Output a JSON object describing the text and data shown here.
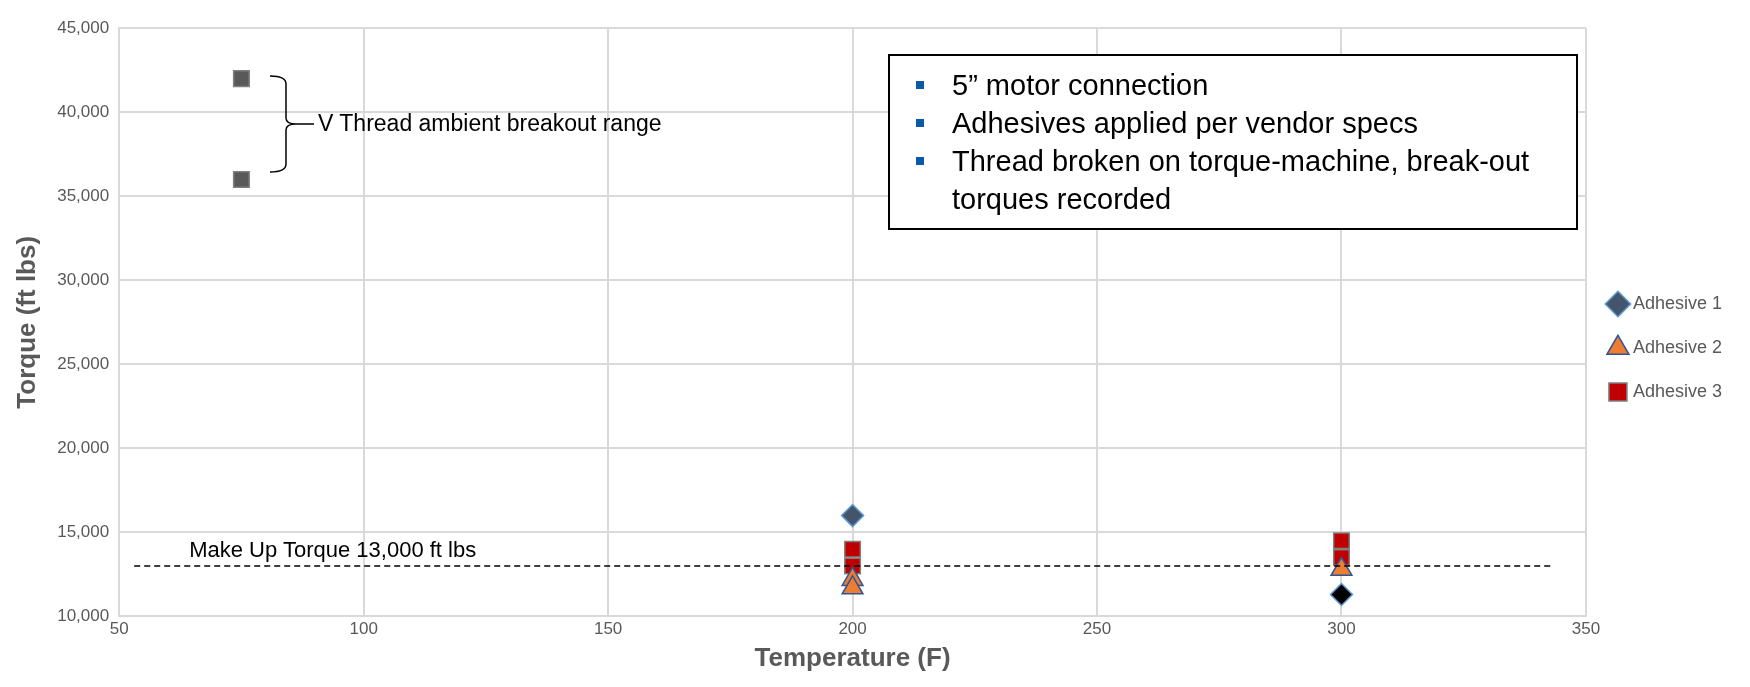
{
  "chart_data": {
    "type": "scatter",
    "xlabel": "Temperature (F)",
    "ylabel": "Torque (ft lbs)",
    "xlim": [
      50,
      350
    ],
    "xticks": [
      50,
      100,
      150,
      200,
      250,
      300,
      350
    ],
    "ylim": [
      10000,
      45000
    ],
    "yticks": [
      {
        "value": 10000,
        "label": "10,000"
      },
      {
        "value": 15000,
        "label": "15,000"
      },
      {
        "value": 20000,
        "label": "20,000"
      },
      {
        "value": 25000,
        "label": "25,000"
      },
      {
        "value": 30000,
        "label": "30,000"
      },
      {
        "value": 35000,
        "label": "35,000"
      },
      {
        "value": 40000,
        "label": "40,000"
      },
      {
        "value": 45000,
        "label": "45,000"
      }
    ],
    "grid": true,
    "legend": "right",
    "series": [
      {
        "color": "#595959",
        "marker": "square",
        "x": [
          75,
          75
        ],
        "values": [
          42000,
          36000
        ]
      },
      {
        "name": "Adhesive 1",
        "color": "#000000",
        "colors": [
          "#44546a",
          "#000000"
        ],
        "marker": "diamond",
        "x": [
          200,
          300
        ],
        "values": [
          16000,
          11300
        ]
      },
      {
        "name": "Adhesive 2",
        "color": "#ed7d31",
        "marker": "triangle",
        "x": [
          200,
          200,
          300
        ],
        "values": [
          12200,
          11700,
          12800
        ]
      },
      {
        "name": "Adhesive 3",
        "color": "#c00000",
        "marker": "square",
        "x": [
          200,
          200,
          300,
          300
        ],
        "values": [
          14000,
          13000,
          14500,
          13500
        ]
      }
    ],
    "ref_lines": [
      {
        "axis": "y",
        "value": 13000,
        "label": "Make Up Torque 13,000 ft lbs",
        "color": "#000000",
        "line_style": "dashed"
      }
    ],
    "annotations": [
      "V Thread ambient breakout range",
      "5” motor connection",
      "Adhesives applied per vendor specs",
      "Thread broken on torque-machine, break-out torques recorded"
    ]
  }
}
